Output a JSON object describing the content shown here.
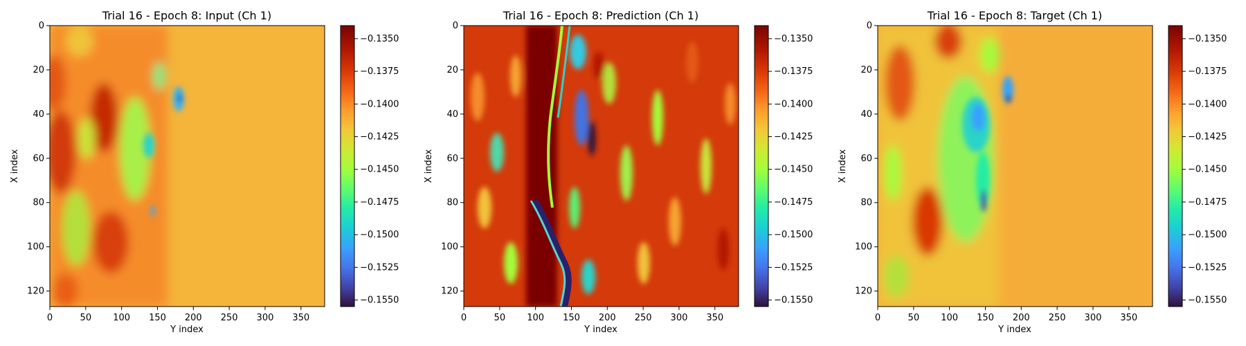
{
  "chart_data": [
    {
      "type": "heatmap",
      "title": "Trial 16 - Epoch 8: Input (Ch 1)",
      "xlabel": "Y index",
      "ylabel": "X index",
      "xlim": [
        0,
        383
      ],
      "ylim": [
        127,
        0
      ],
      "xticks": [
        0,
        50,
        100,
        150,
        200,
        250,
        300,
        350
      ],
      "yticks": [
        0,
        20,
        40,
        60,
        80,
        100,
        120
      ],
      "colormap": "turbo",
      "colorbar": {
        "min": -0.1555,
        "max": -0.134,
        "ticks": [
          "−0.1350",
          "−0.1375",
          "−0.1400",
          "−0.1425",
          "−0.1450",
          "−0.1475",
          "−0.1500",
          "−0.1525",
          "−0.1550"
        ]
      }
    },
    {
      "type": "heatmap",
      "title": "Trial 16 - Epoch 8: Prediction (Ch 1)",
      "xlabel": "Y index",
      "ylabel": "X index",
      "xlim": [
        0,
        383
      ],
      "ylim": [
        127,
        0
      ],
      "xticks": [
        0,
        50,
        100,
        150,
        200,
        250,
        300,
        350
      ],
      "yticks": [
        0,
        20,
        40,
        60,
        80,
        100,
        120
      ],
      "colormap": "turbo",
      "colorbar": {
        "min": -0.1555,
        "max": -0.134,
        "ticks": [
          "−0.1350",
          "−0.1375",
          "−0.1400",
          "−0.1425",
          "−0.1450",
          "−0.1475",
          "−0.1500",
          "−0.1525",
          "−0.1550"
        ]
      }
    },
    {
      "type": "heatmap",
      "title": "Trial 16 - Epoch 8: Target (Ch 1)",
      "xlabel": "Y index",
      "ylabel": "X index",
      "xlim": [
        0,
        383
      ],
      "ylim": [
        127,
        0
      ],
      "xticks": [
        0,
        50,
        100,
        150,
        200,
        250,
        300,
        350
      ],
      "yticks": [
        0,
        20,
        40,
        60,
        80,
        100,
        120
      ],
      "colormap": "turbo",
      "colorbar": {
        "min": -0.1555,
        "max": -0.134,
        "ticks": [
          "−0.1350",
          "−0.1375",
          "−0.1400",
          "−0.1425",
          "−0.1450",
          "−0.1475",
          "−0.1500",
          "−0.1525",
          "−0.1550"
        ]
      }
    }
  ]
}
